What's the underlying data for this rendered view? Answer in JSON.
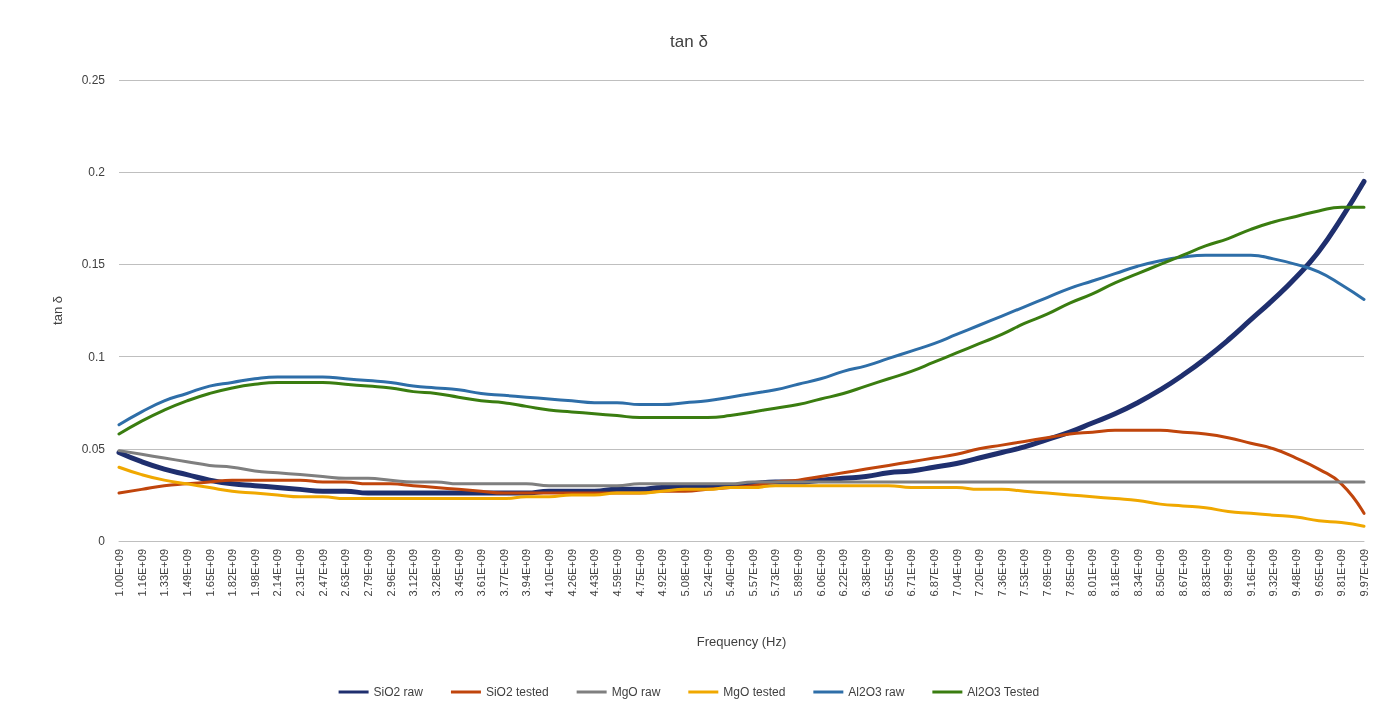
{
  "chart_data": {
    "type": "line",
    "title": "tan δ",
    "xlabel": "Frequency (Hz)",
    "ylabel": "tan δ",
    "categories": [
      "1.00E+09",
      "1.16E+09",
      "1.33E+09",
      "1.49E+09",
      "1.65E+09",
      "1.82E+09",
      "1.98E+09",
      "2.14E+09",
      "2.31E+09",
      "2.47E+09",
      "2.63E+09",
      "2.79E+09",
      "2.96E+09",
      "3.12E+09",
      "3.28E+09",
      "3.45E+09",
      "3.61E+09",
      "3.77E+09",
      "3.94E+09",
      "4.10E+09",
      "4.26E+09",
      "4.43E+09",
      "4.59E+09",
      "4.75E+09",
      "4.92E+09",
      "5.08E+09",
      "5.24E+09",
      "5.40E+09",
      "5.57E+09",
      "5.73E+09",
      "5.89E+09",
      "6.06E+09",
      "6.22E+09",
      "6.38E+09",
      "6.55E+09",
      "6.71E+09",
      "6.87E+09",
      "7.04E+09",
      "7.20E+09",
      "7.36E+09",
      "7.53E+09",
      "7.69E+09",
      "7.85E+09",
      "8.01E+09",
      "8.18E+09",
      "8.34E+09",
      "8.50E+09",
      "8.67E+09",
      "8.83E+09",
      "8.99E+09",
      "9.16E+09",
      "9.32E+09",
      "9.48E+09",
      "9.65E+09",
      "9.81E+09",
      "9.97E+09"
    ],
    "series": [
      {
        "name": "SiO2 raw",
        "color": "#1f2f6e",
        "values": [
          0.048,
          0.043,
          0.039,
          0.036,
          0.033,
          0.031,
          0.03,
          0.029,
          0.028,
          0.027,
          0.027,
          0.026,
          0.026,
          0.026,
          0.026,
          0.026,
          0.026,
          0.026,
          0.026,
          0.027,
          0.027,
          0.027,
          0.028,
          0.028,
          0.029,
          0.029,
          0.03,
          0.03,
          0.031,
          0.032,
          0.032,
          0.033,
          0.034,
          0.035,
          0.037,
          0.038,
          0.04,
          0.042,
          0.045,
          0.048,
          0.051,
          0.055,
          0.059,
          0.064,
          0.069,
          0.075,
          0.082,
          0.09,
          0.099,
          0.109,
          0.12,
          0.131,
          0.143,
          0.157,
          0.175,
          0.195
        ]
      },
      {
        "name": "SiO2 tested",
        "color": "#c0450c",
        "values": [
          0.026,
          0.028,
          0.03,
          0.031,
          0.032,
          0.033,
          0.033,
          0.033,
          0.033,
          0.032,
          0.032,
          0.031,
          0.031,
          0.03,
          0.029,
          0.028,
          0.027,
          0.026,
          0.026,
          0.026,
          0.026,
          0.026,
          0.026,
          0.026,
          0.027,
          0.027,
          0.028,
          0.029,
          0.03,
          0.032,
          0.033,
          0.035,
          0.037,
          0.039,
          0.041,
          0.043,
          0.045,
          0.047,
          0.05,
          0.052,
          0.054,
          0.056,
          0.058,
          0.059,
          0.06,
          0.06,
          0.06,
          0.059,
          0.058,
          0.056,
          0.053,
          0.05,
          0.045,
          0.039,
          0.031,
          0.015
        ]
      },
      {
        "name": "MgO raw",
        "color": "#7f7f7f",
        "values": [
          0.049,
          0.047,
          0.045,
          0.043,
          0.041,
          0.04,
          0.038,
          0.037,
          0.036,
          0.035,
          0.034,
          0.034,
          0.033,
          0.032,
          0.032,
          0.031,
          0.031,
          0.031,
          0.031,
          0.03,
          0.03,
          0.03,
          0.03,
          0.031,
          0.031,
          0.031,
          0.031,
          0.031,
          0.032,
          0.032,
          0.032,
          0.032,
          0.032,
          0.032,
          0.032,
          0.032,
          0.032,
          0.032,
          0.032,
          0.032,
          0.032,
          0.032,
          0.032,
          0.032,
          0.032,
          0.032,
          0.032,
          0.032,
          0.032,
          0.032,
          0.032,
          0.032,
          0.032,
          0.032,
          0.032,
          0.032
        ]
      },
      {
        "name": "MgO tested",
        "color": "#f0a800",
        "values": [
          0.04,
          0.036,
          0.033,
          0.031,
          0.029,
          0.027,
          0.026,
          0.025,
          0.024,
          0.024,
          0.023,
          0.023,
          0.023,
          0.023,
          0.023,
          0.023,
          0.023,
          0.023,
          0.024,
          0.024,
          0.025,
          0.025,
          0.026,
          0.026,
          0.027,
          0.028,
          0.028,
          0.029,
          0.029,
          0.03,
          0.03,
          0.03,
          0.03,
          0.03,
          0.03,
          0.029,
          0.029,
          0.029,
          0.028,
          0.028,
          0.027,
          0.026,
          0.025,
          0.024,
          0.023,
          0.022,
          0.02,
          0.019,
          0.018,
          0.016,
          0.015,
          0.014,
          0.013,
          0.011,
          0.01,
          0.008
        ]
      },
      {
        "name": "Al2O3 raw",
        "color": "#2e6ea8",
        "values": [
          0.063,
          0.07,
          0.076,
          0.08,
          0.084,
          0.086,
          0.088,
          0.089,
          0.089,
          0.089,
          0.088,
          0.087,
          0.086,
          0.084,
          0.083,
          0.082,
          0.08,
          0.079,
          0.078,
          0.077,
          0.076,
          0.075,
          0.075,
          0.074,
          0.074,
          0.075,
          0.076,
          0.078,
          0.08,
          0.082,
          0.085,
          0.088,
          0.092,
          0.095,
          0.099,
          0.103,
          0.107,
          0.112,
          0.117,
          0.122,
          0.127,
          0.132,
          0.137,
          0.141,
          0.145,
          0.149,
          0.152,
          0.154,
          0.155,
          0.155,
          0.155,
          0.153,
          0.15,
          0.146,
          0.139,
          0.131
        ]
      },
      {
        "name": "Al2O3 Tested",
        "color": "#3a7d10",
        "values": [
          0.058,
          0.065,
          0.071,
          0.076,
          0.08,
          0.083,
          0.085,
          0.086,
          0.086,
          0.086,
          0.085,
          0.084,
          0.083,
          0.081,
          0.08,
          0.078,
          0.076,
          0.075,
          0.073,
          0.071,
          0.07,
          0.069,
          0.068,
          0.067,
          0.067,
          0.067,
          0.067,
          0.068,
          0.07,
          0.072,
          0.074,
          0.077,
          0.08,
          0.084,
          0.088,
          0.092,
          0.097,
          0.102,
          0.107,
          0.112,
          0.118,
          0.123,
          0.129,
          0.134,
          0.14,
          0.145,
          0.15,
          0.155,
          0.16,
          0.164,
          0.169,
          0.173,
          0.176,
          0.179,
          0.181,
          0.181
        ]
      }
    ],
    "ylim": [
      0,
      0.25
    ],
    "yticks": [
      0,
      0.05,
      0.1,
      0.15,
      0.2,
      0.25
    ],
    "grid": "y",
    "legend": "bottom",
    "marker": "none",
    "line_style": "solid"
  }
}
